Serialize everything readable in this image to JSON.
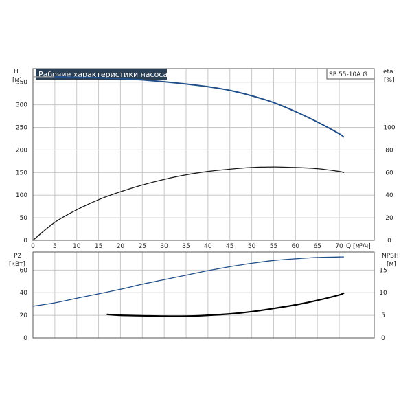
{
  "chart_data": [
    {
      "type": "line",
      "title": "Рабочие характеристики насоса",
      "model_label": "SP 55-10A G",
      "left_axis": {
        "name": "H",
        "unit": "[м]",
        "ticks": [
          0,
          50,
          100,
          150,
          200,
          250,
          300,
          350
        ],
        "ylim": [
          0,
          380
        ]
      },
      "right_axis": {
        "name": "eta",
        "unit": "[%]",
        "ticks": [
          0,
          20,
          40,
          60,
          80,
          100
        ],
        "ylim": [
          0,
          152
        ]
      },
      "x_axis": {
        "label": "Q [м³/ч]",
        "ticks": [
          0,
          5,
          10,
          15,
          20,
          25,
          30,
          35,
          40,
          45,
          50,
          55,
          60,
          65,
          70
        ],
        "xlim": [
          0,
          78
        ]
      },
      "grid": true,
      "series": [
        {
          "axis": "left",
          "color": "#1f4e89",
          "reference_level": 362,
          "x": [
            5,
            10,
            15,
            20,
            25,
            30,
            35,
            40,
            45,
            50,
            55,
            60,
            65,
            70,
            71
          ],
          "values": [
            362,
            361,
            360,
            358,
            355,
            351,
            346,
            340,
            332,
            320,
            305,
            285,
            262,
            236,
            229
          ]
        },
        {
          "axis": "right",
          "color": "#1a1a1a",
          "x": [
            0,
            5,
            10,
            15,
            20,
            25,
            30,
            35,
            40,
            45,
            50,
            55,
            60,
            65,
            70,
            71
          ],
          "values": [
            0,
            16,
            27,
            36,
            43,
            49,
            54,
            58,
            61,
            63,
            64.5,
            65,
            64.5,
            63.5,
            61,
            60
          ]
        }
      ]
    },
    {
      "type": "line",
      "left_axis": {
        "name": "P2",
        "unit": "[кВт]",
        "ticks": [
          0,
          20,
          40,
          60
        ],
        "ylim": [
          0,
          76
        ]
      },
      "right_axis": {
        "name": "NPSH",
        "unit": "[м]",
        "ticks": [
          0,
          5,
          10,
          15
        ],
        "ylim": [
          0,
          19
        ]
      },
      "x_axis": {
        "xlim": [
          0,
          78
        ]
      },
      "grid": true,
      "series": [
        {
          "axis": "left",
          "color": "#1f4e89",
          "x": [
            0,
            5,
            10,
            15,
            20,
            25,
            30,
            35,
            40,
            45,
            50,
            55,
            60,
            65,
            70,
            71
          ],
          "values": [
            28,
            31,
            35,
            39,
            43,
            47.5,
            51.5,
            55.5,
            59.5,
            63,
            66,
            68.5,
            70,
            71.2,
            71.6,
            71.7
          ]
        },
        {
          "axis": "right",
          "color": "#000000",
          "x": [
            17,
            20,
            25,
            30,
            35,
            40,
            45,
            50,
            55,
            60,
            65,
            70,
            71
          ],
          "values": [
            5.2,
            5.0,
            4.9,
            4.8,
            4.8,
            5.0,
            5.3,
            5.8,
            6.5,
            7.3,
            8.3,
            9.5,
            9.9
          ]
        }
      ]
    }
  ]
}
